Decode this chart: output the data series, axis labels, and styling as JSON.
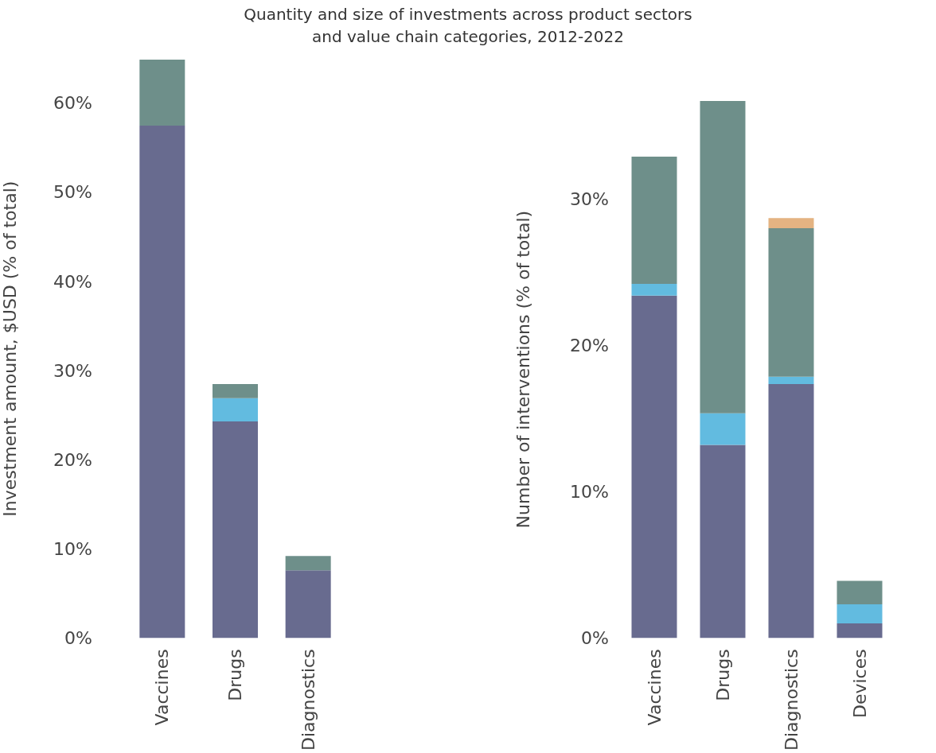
{
  "chart_data": [
    {
      "type": "bar",
      "title": "Quantity and size of investments across product sectors and value chain categories, 2012-2022",
      "ylabel": "Investment amount, $USD (% of total)",
      "categories": [
        "Vaccines",
        "Drugs",
        "Diagnostics"
      ],
      "stacked": true,
      "grid": false,
      "ylim": [
        0,
        64.9
      ],
      "yticks": [
        {
          "value": 0,
          "label": "0%"
        },
        {
          "value": 10,
          "label": "10%"
        },
        {
          "value": 20,
          "label": "20%"
        },
        {
          "value": 30,
          "label": "30%"
        },
        {
          "value": 40,
          "label": "40%"
        },
        {
          "value": 50,
          "label": "50%"
        },
        {
          "value": 60,
          "label": "60%"
        }
      ],
      "series": [
        {
          "color": "#686b8f",
          "values": [
            57.5,
            24.3,
            7.6
          ]
        },
        {
          "color": "#62bbe0",
          "values": [
            null,
            2.6,
            null
          ]
        },
        {
          "color": "#6e8f8a",
          "values": [
            7.4,
            1.6,
            1.6
          ]
        }
      ]
    },
    {
      "type": "bar",
      "ylabel": "Number of interventions (% of total)",
      "categories": [
        "Vaccines",
        "Drugs",
        "Diagnostics",
        "Devices"
      ],
      "stacked": true,
      "grid": false,
      "ylim": [
        0,
        36.7
      ],
      "yticks": [
        {
          "value": 0,
          "label": "0%"
        },
        {
          "value": 10,
          "label": "10%"
        },
        {
          "value": 20,
          "label": "20%"
        },
        {
          "value": 30,
          "label": "30%"
        }
      ],
      "series": [
        {
          "color": "#686b8f",
          "values": [
            23.4,
            13.2,
            17.35,
            1.0
          ]
        },
        {
          "color": "#62bbe0",
          "values": [
            0.8,
            2.15,
            0.5,
            1.3
          ]
        },
        {
          "color": "#6e8f8a",
          "values": [
            8.7,
            21.35,
            10.15,
            1.6
          ]
        },
        {
          "color": "#e4b382",
          "values": [
            null,
            null,
            0.7,
            null
          ]
        }
      ]
    }
  ]
}
